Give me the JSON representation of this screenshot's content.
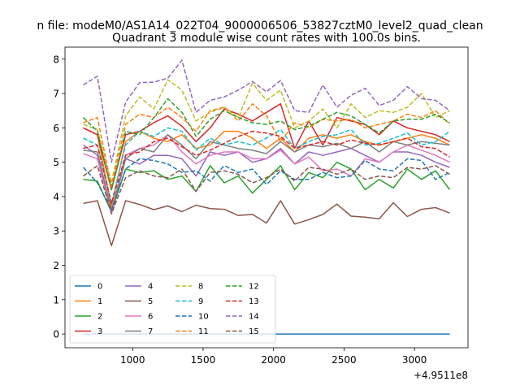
{
  "figure": {
    "suptitle": "n file: modeM0/AS1A14_022T04_9000006506_53827cztM0_level2_quad_clean",
    "title": "Quadrant 3 module wise count rates with 100.0s bins."
  },
  "chart_data": {
    "type": "line",
    "x": [
      650,
      750,
      850,
      950,
      1050,
      1150,
      1250,
      1350,
      1450,
      1550,
      1650,
      1750,
      1850,
      1950,
      2050,
      2150,
      2250,
      2350,
      2450,
      2550,
      2650,
      2750,
      2850,
      2950,
      3050,
      3150,
      3250
    ],
    "x_offset_label": "+4.9511e8",
    "xlim": [
      520,
      3380
    ],
    "ylim": [
      -0.4,
      8.35
    ],
    "xticks": [
      1000,
      1500,
      2000,
      2500,
      3000
    ],
    "yticks": [
      0,
      1,
      2,
      3,
      4,
      5,
      6,
      7,
      8
    ],
    "xlabel": "",
    "ylabel": "",
    "grid": false,
    "legend_position": "lower-left",
    "legend_columns": 4,
    "series": [
      {
        "name": "0",
        "color": "#1f77b4",
        "dash": "solid",
        "values": [
          0,
          0,
          0,
          0,
          0,
          0,
          0,
          0,
          0,
          0,
          0,
          0,
          0,
          0,
          0,
          0,
          0,
          0,
          0,
          0,
          0,
          0,
          0,
          0,
          0,
          0,
          0
        ]
      },
      {
        "name": "1",
        "color": "#ff7f0e",
        "dash": "solid",
        "values": [
          6.0,
          5.8,
          3.7,
          5.6,
          5.9,
          5.7,
          5.6,
          5.8,
          5.4,
          5.5,
          5.9,
          5.9,
          5.7,
          5.4,
          5.7,
          5.3,
          5.7,
          5.8,
          5.7,
          5.8,
          5.6,
          5.5,
          5.6,
          5.7,
          5.8,
          5.7,
          5.5
        ]
      },
      {
        "name": "2",
        "color": "#2ca02c",
        "dash": "solid",
        "values": [
          4.5,
          4.45,
          3.55,
          4.8,
          4.7,
          4.75,
          4.5,
          4.6,
          4.15,
          4.9,
          4.4,
          4.6,
          4.1,
          4.5,
          4.9,
          4.2,
          4.7,
          4.55,
          5.0,
          4.8,
          4.2,
          4.5,
          4.25,
          4.8,
          4.5,
          4.75,
          4.2
        ]
      },
      {
        "name": "3",
        "color": "#d62728",
        "dash": "solid",
        "values": [
          6.0,
          5.8,
          4.2,
          5.8,
          5.9,
          6.15,
          6.35,
          6.05,
          5.6,
          6.0,
          6.55,
          6.4,
          6.2,
          6.45,
          6.7,
          5.4,
          6.2,
          5.5,
          6.3,
          6.2,
          6.1,
          5.8,
          6.2,
          6.0,
          5.9,
          5.8,
          5.6
        ]
      },
      {
        "name": "4",
        "color": "#9467bd",
        "dash": "solid",
        "values": [
          5.5,
          5.2,
          3.5,
          5.1,
          4.95,
          5.2,
          5.2,
          5.1,
          4.6,
          5.3,
          5.2,
          5.3,
          5.0,
          5.1,
          5.4,
          4.95,
          5.3,
          5.2,
          5.3,
          5.4,
          5.2,
          5.0,
          5.3,
          5.3,
          5.2,
          5.0,
          4.85
        ]
      },
      {
        "name": "5",
        "color": "#8c564b",
        "dash": "solid",
        "values": [
          3.8,
          3.88,
          2.57,
          3.88,
          3.77,
          3.62,
          3.73,
          3.56,
          3.75,
          3.65,
          3.63,
          3.45,
          3.48,
          3.23,
          3.88,
          3.2,
          3.33,
          3.48,
          3.78,
          3.43,
          3.4,
          3.35,
          3.82,
          3.42,
          3.63,
          3.68,
          3.52
        ]
      },
      {
        "name": "6",
        "color": "#e377c2",
        "dash": "solid",
        "values": [
          5.25,
          5.1,
          3.5,
          5.2,
          5.4,
          5.5,
          5.8,
          5.3,
          4.95,
          5.2,
          5.3,
          5.3,
          5.1,
          5.1,
          5.35,
          4.95,
          5.15,
          4.75,
          4.8,
          4.6,
          5.1,
          5.0,
          5.3,
          5.5,
          5.35,
          5.2,
          5.0
        ]
      },
      {
        "name": "7",
        "color": "#7f7f7f",
        "dash": "solid",
        "values": [
          5.35,
          5.3,
          3.6,
          5.1,
          5.4,
          5.3,
          5.8,
          5.5,
          5.1,
          5.6,
          5.5,
          5.4,
          5.35,
          5.25,
          5.6,
          5.3,
          5.5,
          5.45,
          5.55,
          5.4,
          5.6,
          5.3,
          5.6,
          5.5,
          5.6,
          5.55,
          5.5
        ]
      },
      {
        "name": "8",
        "color": "#bcbd22",
        "dash": "dashed",
        "values": [
          6.1,
          5.95,
          4.4,
          6.35,
          6.9,
          6.55,
          7.4,
          7.1,
          6.2,
          6.45,
          6.6,
          6.3,
          7.3,
          6.8,
          7.1,
          6.0,
          6.2,
          6.55,
          6.0,
          6.7,
          6.3,
          6.5,
          6.45,
          6.6,
          7.0,
          6.3,
          6.5
        ]
      },
      {
        "name": "9",
        "color": "#17becf",
        "dash": "dashed",
        "values": [
          5.7,
          5.5,
          3.8,
          5.5,
          5.9,
          5.75,
          6.0,
          5.9,
          5.35,
          5.7,
          5.5,
          5.6,
          5.5,
          5.7,
          5.95,
          5.4,
          5.6,
          5.75,
          5.8,
          5.95,
          5.5,
          5.55,
          5.7,
          5.85,
          5.5,
          5.6,
          5.9
        ]
      },
      {
        "name": "10",
        "color": "#1f77b4",
        "dash": "dashed",
        "values": [
          4.85,
          4.4,
          3.6,
          4.8,
          5.1,
          5.05,
          4.95,
          4.7,
          4.75,
          4.45,
          4.9,
          4.7,
          4.8,
          4.35,
          4.75,
          4.5,
          4.5,
          4.7,
          4.55,
          4.6,
          5.05,
          4.8,
          4.75,
          5.1,
          5.05,
          4.5,
          4.7
        ]
      },
      {
        "name": "11",
        "color": "#ff7f0e",
        "dash": "dashed",
        "values": [
          6.15,
          6.3,
          4.3,
          6.1,
          6.4,
          6.3,
          6.6,
          6.3,
          5.9,
          6.5,
          6.6,
          6.2,
          6.7,
          6.35,
          5.6,
          6.15,
          6.0,
          6.25,
          6.2,
          6.25,
          6.0,
          6.1,
          6.2,
          6.4,
          6.3,
          6.5,
          6.1
        ]
      },
      {
        "name": "12",
        "color": "#2ca02c",
        "dash": "dashed",
        "values": [
          6.3,
          5.9,
          4.2,
          5.9,
          5.8,
          6.3,
          6.85,
          6.45,
          5.75,
          6.25,
          6.5,
          6.3,
          6.15,
          6.1,
          6.2,
          5.95,
          6.05,
          6.25,
          6.45,
          6.35,
          6.1,
          5.85,
          6.2,
          6.25,
          6.25,
          6.4,
          6.15
        ]
      },
      {
        "name": "13",
        "color": "#d62728",
        "dash": "dashed",
        "values": [
          5.4,
          5.5,
          3.8,
          5.2,
          5.3,
          5.6,
          5.7,
          5.45,
          5.2,
          5.35,
          5.55,
          5.75,
          5.9,
          5.85,
          5.75,
          5.4,
          5.5,
          5.6,
          5.5,
          5.65,
          5.55,
          5.5,
          5.6,
          5.7,
          5.45,
          5.4,
          5.15
        ]
      },
      {
        "name": "14",
        "color": "#9467bd",
        "dash": "dashed",
        "values": [
          7.25,
          7.5,
          5.0,
          6.75,
          7.32,
          7.33,
          7.45,
          7.97,
          6.45,
          6.8,
          6.9,
          7.1,
          7.35,
          7.05,
          7.38,
          6.5,
          6.45,
          7.25,
          6.6,
          6.95,
          7.15,
          6.65,
          6.8,
          7.2,
          6.85,
          6.8,
          6.5
        ]
      },
      {
        "name": "15",
        "color": "#8c564b",
        "dash": "dashed",
        "values": [
          4.6,
          4.9,
          3.5,
          4.55,
          4.75,
          4.6,
          4.55,
          4.8,
          4.15,
          4.7,
          4.75,
          4.65,
          4.4,
          4.55,
          4.8,
          4.45,
          4.85,
          4.8,
          4.65,
          4.8,
          4.5,
          4.6,
          4.55,
          4.85,
          4.8,
          4.9,
          4.65
        ]
      }
    ]
  }
}
